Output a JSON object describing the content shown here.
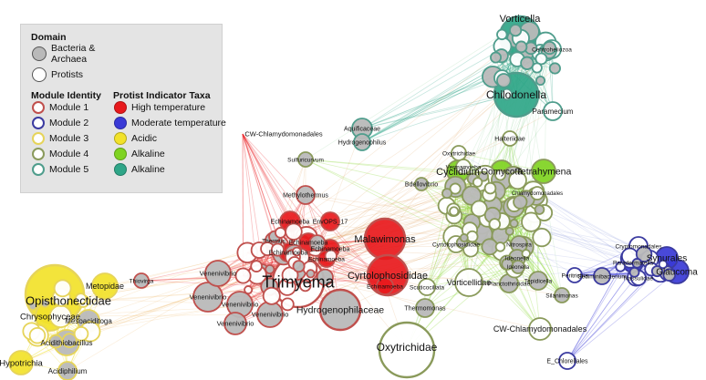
{
  "colors": {
    "module1": "#e8191c",
    "module2": "#3a3ad6",
    "module3": "#f2e22a",
    "module4": "#7fd321",
    "module5": "#2fa688",
    "bacteria_fill": "#b9b9b9",
    "protist_fill": "#ffffff",
    "mod_ring1": "#c0504d",
    "mod_ring2": "#3b3ba0",
    "mod_ring3": "#e6d45a",
    "mod_ring4": "#8a9a5b",
    "mod_ring5": "#4f9d8c"
  },
  "legend": {
    "domain_title": "Domain",
    "bacteria_label": "Bacteria &\nArchaea",
    "protists_label": "Protists",
    "module_title": "Module Identity",
    "modules": [
      "Module 1",
      "Module 2",
      "Module 3",
      "Module 4",
      "Module 5"
    ],
    "indicator_title": "Protist Indicator Taxa",
    "indicators": [
      "High temperature",
      "Moderate temperature",
      "Acidic",
      "Alkaline",
      "Alkaline"
    ]
  },
  "nodes": [
    {
      "label": "Vorticella",
      "module": 5,
      "kind": "indicator"
    },
    {
      "label": "Centroheliozoa",
      "module": 5,
      "kind": "protist"
    },
    {
      "label": "Chilodonella",
      "module": 5,
      "kind": "indicator"
    },
    {
      "label": "Paramecium",
      "module": 5,
      "kind": "protist"
    },
    {
      "label": "Aquificaceae",
      "module": 5,
      "kind": "bacteria"
    },
    {
      "label": "Hydrogenophilus",
      "module": 5,
      "kind": "bacteria"
    },
    {
      "label": "Oxytrichidae",
      "module": 4,
      "kind": "protist"
    },
    {
      "label": "Halteriidae",
      "module": 4,
      "kind": "protist"
    },
    {
      "label": "Vermamoeba",
      "module": 4,
      "kind": "protist"
    },
    {
      "label": "Bdellovibrio",
      "module": 4,
      "kind": "bacteria"
    },
    {
      "label": "CW-Chlamydomonadales",
      "module": 1,
      "kind": "protist"
    },
    {
      "label": "Sulfuricurvum",
      "module": 4,
      "kind": "bacteria"
    },
    {
      "label": "Cyclidium",
      "module": 4,
      "kind": "indicator"
    },
    {
      "label": "Oomycota",
      "module": 4,
      "kind": "indicator"
    },
    {
      "label": "Tetrahymena",
      "module": 4,
      "kind": "indicator"
    },
    {
      "label": "Chlamydomonadales",
      "module": 4,
      "kind": "protist"
    },
    {
      "label": "Methylothermus",
      "module": 1,
      "kind": "bacteria"
    },
    {
      "label": "Echinamoeba",
      "module": 1,
      "kind": "indicator"
    },
    {
      "label": "EnvOPS_17",
      "module": 1,
      "kind": "indicator"
    },
    {
      "label": "Thermus",
      "module": 1,
      "kind": "bacteria"
    },
    {
      "label": "Echinamoeba",
      "module": 1,
      "kind": "indicator"
    },
    {
      "label": "Echinamoeba",
      "module": 1,
      "kind": "indicator"
    },
    {
      "label": "Echinamoeba",
      "module": 1,
      "kind": "indicator"
    },
    {
      "label": "Echinamoeba",
      "module": 1,
      "kind": "indicator"
    },
    {
      "label": "Malawimonas",
      "module": 1,
      "kind": "indicator"
    },
    {
      "label": "Cyrtolophosididae",
      "module": 4,
      "kind": "protist"
    },
    {
      "label": "Nitrospira",
      "module": 4,
      "kind": "bacteria"
    },
    {
      "label": "Ideonella",
      "module": 4,
      "kind": "bacteria"
    },
    {
      "label": "Ideonella",
      "module": 4,
      "kind": "bacteria"
    },
    {
      "label": "Peritrichia",
      "module": 2,
      "kind": "protist"
    },
    {
      "label": "Cryptomonadales",
      "module": 2,
      "kind": "protist"
    },
    {
      "label": "Synurales",
      "module": 2,
      "kind": "indicator"
    },
    {
      "label": "Paradermatella",
      "module": 2,
      "kind": "indicator"
    },
    {
      "label": "Glaucoma",
      "module": 2,
      "kind": "indicator"
    },
    {
      "label": "Nassulidae",
      "module": 2,
      "kind": "protist"
    },
    {
      "label": "Sediminibacterium",
      "module": 2,
      "kind": "bacteria"
    },
    {
      "label": "Trimyema",
      "module": 1,
      "kind": "protist"
    },
    {
      "label": "Cyrtolophosididae",
      "module": 1,
      "kind": "indicator"
    },
    {
      "label": "Echinamoeba",
      "module": 1,
      "kind": "indicator"
    },
    {
      "label": "Scuticociliata",
      "module": 4,
      "kind": "protist"
    },
    {
      "label": "Vorticellidae",
      "module": 4,
      "kind": "protist"
    },
    {
      "label": "Planctothricidae",
      "module": 4,
      "kind": "bacteria"
    },
    {
      "label": "Tepidicella",
      "module": 4,
      "kind": "bacteria"
    },
    {
      "label": "Silanimonas",
      "module": 4,
      "kind": "bacteria"
    },
    {
      "label": "Thermomonas",
      "module": 4,
      "kind": "bacteria"
    },
    {
      "label": "Hydrogenophilaceae",
      "module": 1,
      "kind": "bacteria"
    },
    {
      "label": "CW-Chlamydomonadales",
      "module": 4,
      "kind": "protist"
    },
    {
      "label": "E_Chlorellales",
      "module": 2,
      "kind": "protist"
    },
    {
      "label": "Oxytrichidae",
      "module": 4,
      "kind": "protist"
    },
    {
      "label": "Venenivibrio",
      "module": 1,
      "kind": "bacteria"
    },
    {
      "label": "Venenivibrio",
      "module": 1,
      "kind": "bacteria"
    },
    {
      "label": "Venenivibrio",
      "module": 1,
      "kind": "bacteria"
    },
    {
      "label": "Venenivibrio",
      "module": 1,
      "kind": "bacteria"
    },
    {
      "label": "Venenivibrio",
      "module": 1,
      "kind": "bacteria"
    },
    {
      "label": "Thiovirga",
      "module": 1,
      "kind": "bacteria"
    },
    {
      "label": "Opisthonectidae",
      "module": 3,
      "kind": "indicator"
    },
    {
      "label": "Metopidae",
      "module": 3,
      "kind": "indicator"
    },
    {
      "label": "Chrysophyceae",
      "module": 3,
      "kind": "indicator"
    },
    {
      "label": "Mesoaciditoga",
      "module": 3,
      "kind": "bacteria"
    },
    {
      "label": "Acidithiobacillus",
      "module": 3,
      "kind": "bacteria"
    },
    {
      "label": "Hypotrichia",
      "module": 3,
      "kind": "indicator"
    },
    {
      "label": "Acidiphilium",
      "module": 3,
      "kind": "bacteria"
    }
  ]
}
